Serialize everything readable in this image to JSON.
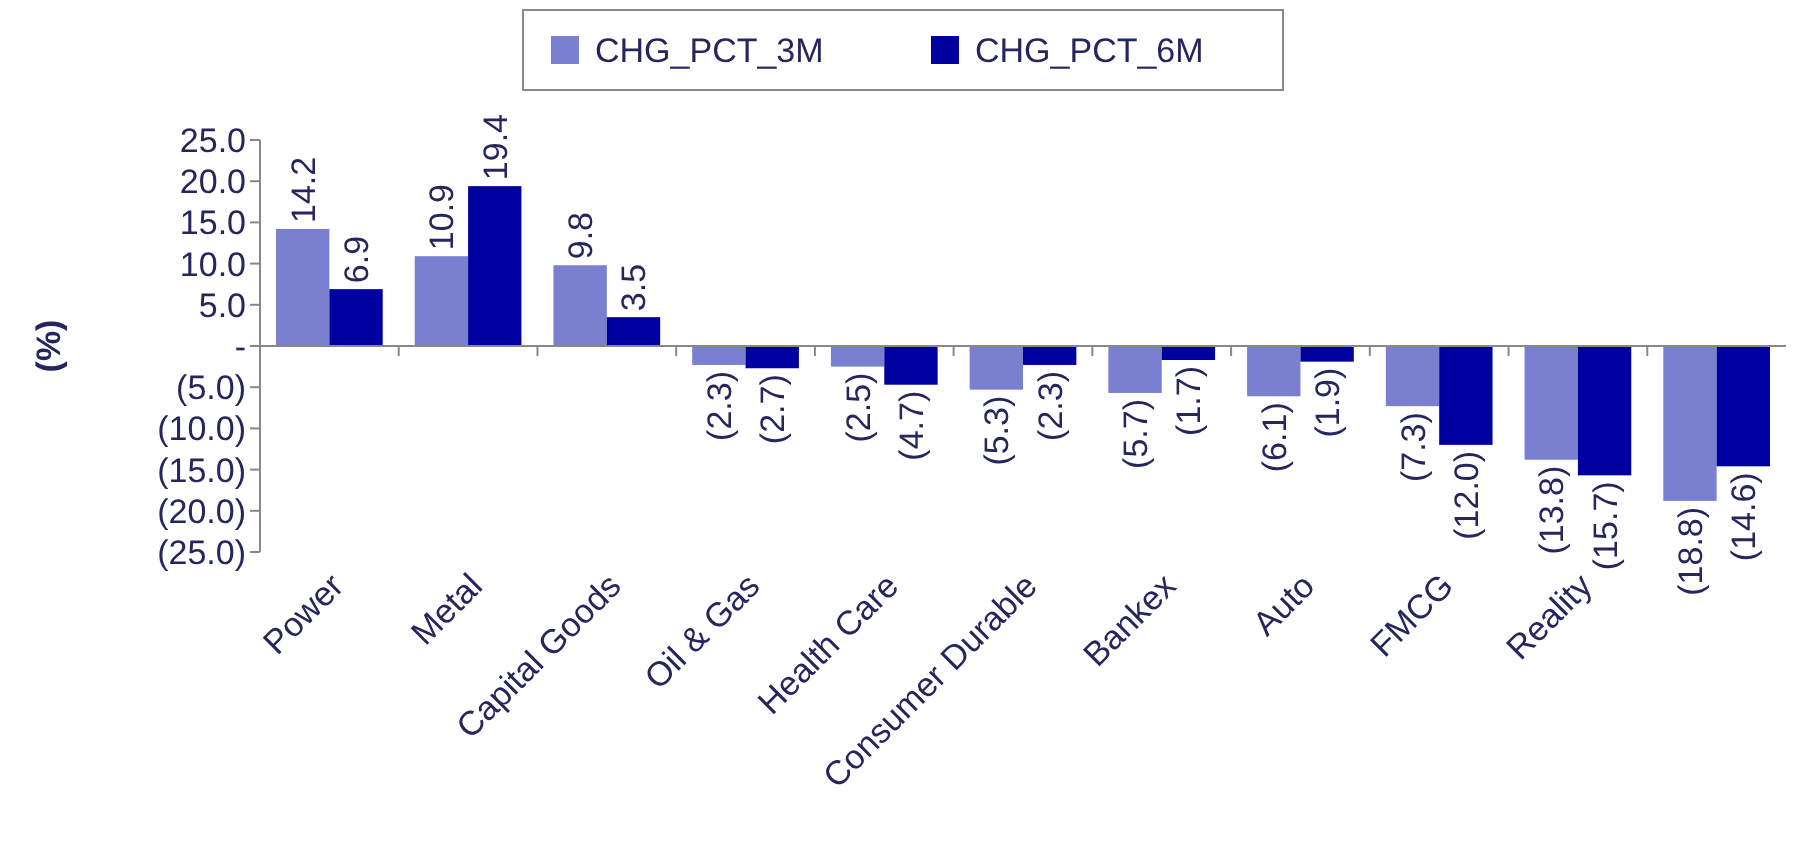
{
  "chart_data": {
    "type": "bar",
    "ylabel": "(%)",
    "categories": [
      "Power",
      "Metal",
      "Capital Goods",
      "Oil & Gas",
      "Health Care",
      "Consumer Durable",
      "Bankex",
      "Auto",
      "FMCG",
      "Reality",
      null
    ],
    "series": [
      {
        "name": "CHG_PCT_3M",
        "color": "#7b7fcf",
        "values": [
          14.2,
          10.9,
          9.8,
          -2.3,
          -2.5,
          -5.3,
          -5.7,
          -6.1,
          -7.3,
          -13.8,
          -18.8
        ],
        "value_labels": [
          "14.2",
          "10.9",
          "9.8",
          "(2.3)",
          "(2.5)",
          "(5.3)",
          "(5.7)",
          "(6.1)",
          "(7.3)",
          "(13.8)",
          "(18.8)"
        ]
      },
      {
        "name": "CHG_PCT_6M",
        "color": "#0000a0",
        "values": [
          6.9,
          19.4,
          3.5,
          -2.7,
          -4.7,
          -2.3,
          -1.7,
          -1.9,
          -12.0,
          -15.7,
          -14.6
        ],
        "value_labels": [
          "6.9",
          "19.4",
          "3.5",
          "(2.7)",
          "(4.7)",
          "(2.3)",
          "(1.7)",
          "(1.9)",
          "(12.0)",
          "(15.7)",
          "(14.6)"
        ]
      }
    ],
    "ylim": [
      -25,
      25
    ],
    "yticks": [
      {
        "value": 25,
        "label": "25.0"
      },
      {
        "value": 20,
        "label": "20.0"
      },
      {
        "value": 15,
        "label": "15.0"
      },
      {
        "value": 10,
        "label": "10.0"
      },
      {
        "value": 5,
        "label": "5.0"
      },
      {
        "value": 0,
        "label": "-"
      },
      {
        "value": -5,
        "label": "(5.0)"
      },
      {
        "value": -10,
        "label": "(10.0)"
      },
      {
        "value": -15,
        "label": "(15.0)"
      },
      {
        "value": -20,
        "label": "(20.0)"
      },
      {
        "value": -25,
        "label": "(25.0)"
      }
    ],
    "legend": "top"
  }
}
